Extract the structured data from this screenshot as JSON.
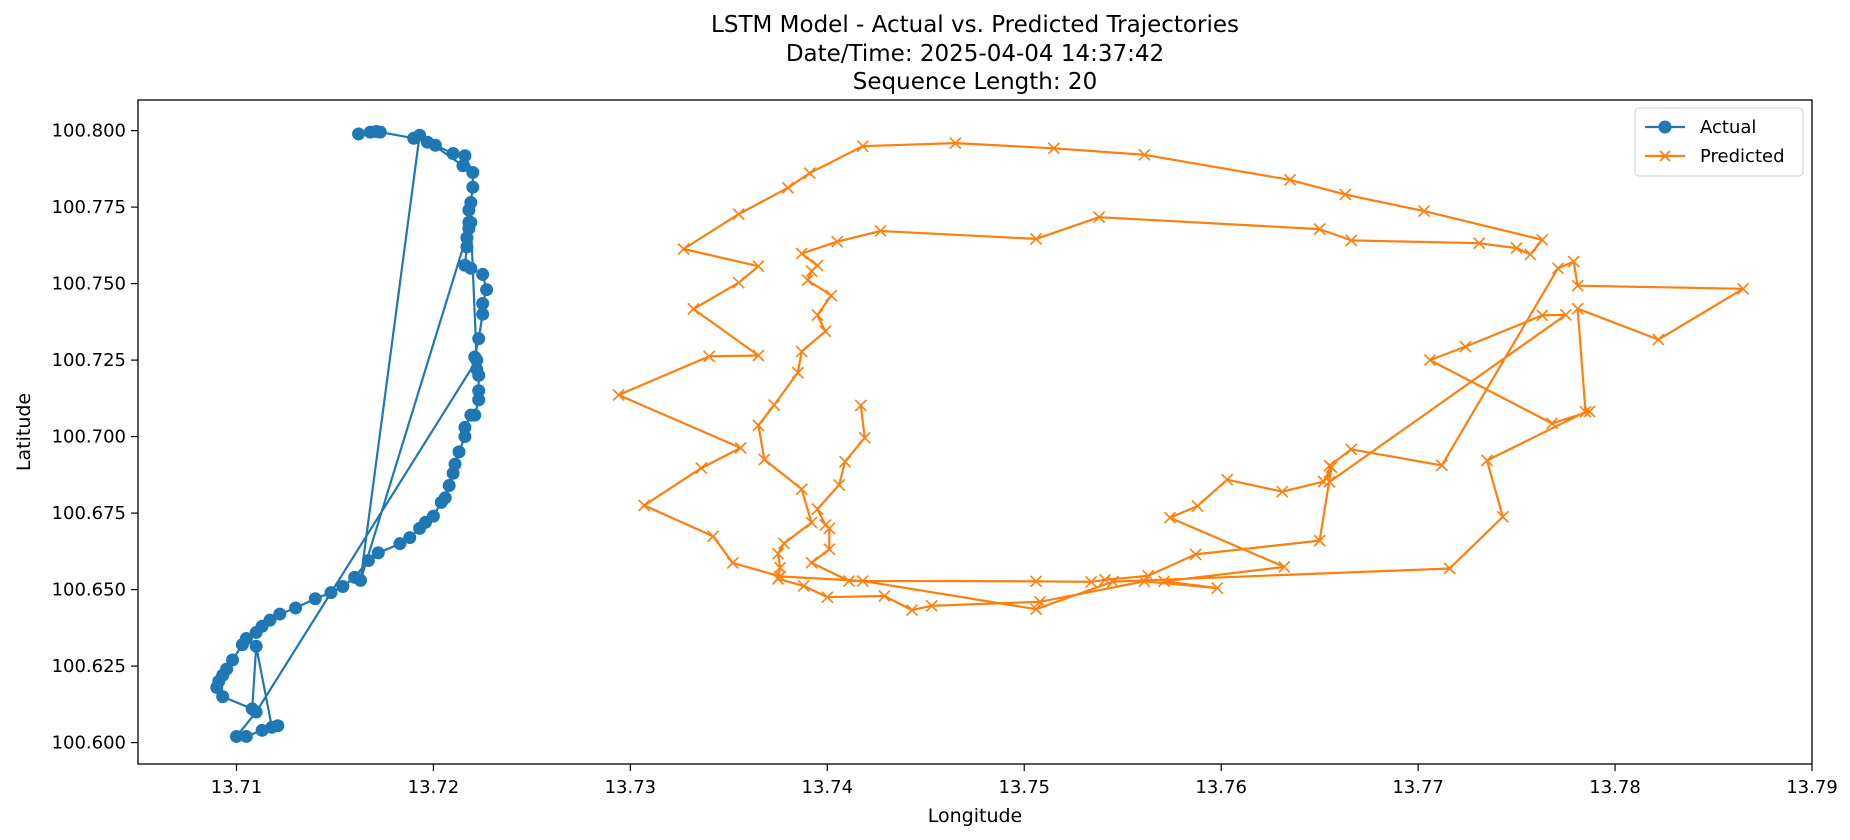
{
  "chart_data": {
    "type": "line",
    "title_lines": [
      "LSTM Model - Actual vs. Predicted Trajectories",
      "Date/Time: 2025-04-04 14:37:42",
      "Sequence Length: 20"
    ],
    "xlabel": "Longitude",
    "ylabel": "Latitude",
    "xlim": [
      13.705,
      13.79
    ],
    "ylim": [
      100.593,
      100.81
    ],
    "xticks": [
      13.71,
      13.72,
      13.73,
      13.74,
      13.75,
      13.76,
      13.77,
      13.78,
      13.79
    ],
    "xtick_labels": [
      "13.71",
      "13.72",
      "13.73",
      "13.74",
      "13.75",
      "13.76",
      "13.77",
      "13.78",
      "13.79"
    ],
    "yticks": [
      100.6,
      100.625,
      100.65,
      100.675,
      100.7,
      100.725,
      100.75,
      100.775,
      100.8
    ],
    "ytick_labels": [
      "100.600",
      "100.625",
      "100.650",
      "100.675",
      "100.700",
      "100.725",
      "100.750",
      "100.775",
      "100.800"
    ],
    "grid": false,
    "legend": "top-right",
    "series": [
      {
        "name": "Actual",
        "marker": "circle",
        "color": "#1f77b4",
        "points": [
          [
            13.7162,
            100.7989
          ],
          [
            13.7168,
            100.7995
          ],
          [
            13.7171,
            100.7997
          ],
          [
            13.7173,
            100.7995
          ],
          [
            13.719,
            100.7975
          ],
          [
            13.7197,
            100.7962
          ],
          [
            13.7201,
            100.7952
          ],
          [
            13.721,
            100.7925
          ],
          [
            13.7216,
            100.7918
          ],
          [
            13.722,
            100.7863
          ],
          [
            13.722,
            100.7815
          ],
          [
            13.7219,
            100.7765
          ],
          [
            13.7218,
            100.774
          ],
          [
            13.7218,
            100.77
          ],
          [
            13.7218,
            100.768
          ],
          [
            13.7217,
            100.765
          ],
          [
            13.7217,
            100.762
          ],
          [
            13.7216,
            100.756
          ],
          [
            13.7219,
            100.755
          ],
          [
            13.7225,
            100.753
          ],
          [
            13.7227,
            100.748
          ],
          [
            13.7225,
            100.7435
          ],
          [
            13.7225,
            100.74
          ],
          [
            13.7223,
            100.732
          ],
          [
            13.7221,
            100.726
          ],
          [
            13.7222,
            100.722
          ],
          [
            13.7223,
            100.72
          ],
          [
            13.7223,
            100.715
          ],
          [
            13.7223,
            100.712
          ],
          [
            13.7221,
            100.707
          ],
          [
            13.7219,
            100.707
          ],
          [
            13.7216,
            100.703
          ],
          [
            13.7216,
            100.7
          ],
          [
            13.7213,
            100.695
          ],
          [
            13.7211,
            100.691
          ],
          [
            13.721,
            100.688
          ],
          [
            13.7208,
            100.684
          ],
          [
            13.7206,
            100.68
          ],
          [
            13.7204,
            100.6785
          ],
          [
            13.72,
            100.674
          ],
          [
            13.7196,
            100.672
          ],
          [
            13.7193,
            100.67
          ],
          [
            13.7188,
            100.667
          ],
          [
            13.7183,
            100.665
          ],
          [
            13.7172,
            100.662
          ],
          [
            13.7167,
            100.6595
          ],
          [
            13.716,
            100.654
          ],
          [
            13.7154,
            100.651
          ],
          [
            13.7148,
            100.649
          ],
          [
            13.714,
            100.647
          ],
          [
            13.713,
            100.644
          ],
          [
            13.7122,
            100.642
          ],
          [
            13.7117,
            100.64
          ],
          [
            13.7113,
            100.638
          ],
          [
            13.711,
            100.636
          ],
          [
            13.7105,
            100.634
          ],
          [
            13.7103,
            100.632
          ],
          [
            13.7098,
            100.627
          ],
          [
            13.7095,
            100.624
          ],
          [
            13.7093,
            100.622
          ],
          [
            13.7091,
            100.62
          ],
          [
            13.709,
            100.618
          ],
          [
            13.7093,
            100.615
          ],
          [
            13.7108,
            100.611
          ],
          [
            13.711,
            100.6315
          ],
          [
            13.7118,
            100.605
          ],
          [
            13.7121,
            100.6055
          ],
          [
            13.7113,
            100.604
          ],
          [
            13.7105,
            100.602
          ],
          [
            13.71,
            100.602
          ],
          [
            13.711,
            100.61
          ],
          [
            13.7222,
            100.725
          ],
          [
            13.7219,
            100.77
          ],
          [
            13.7163,
            100.653
          ],
          [
            13.7193,
            100.7985
          ],
          [
            13.7215,
            100.7885
          ]
        ]
      },
      {
        "name": "Predicted",
        "marker": "x",
        "color": "#ff7f0e",
        "points": [
          [
            13.7417,
            100.7102
          ],
          [
            13.7419,
            100.6996
          ],
          [
            13.7409,
            100.6918
          ],
          [
            13.7406,
            100.6842
          ],
          [
            13.7395,
            100.6763
          ],
          [
            13.7399,
            100.6711
          ],
          [
            13.7401,
            100.67
          ],
          [
            13.7401,
            100.6632
          ],
          [
            13.7392,
            100.6588
          ],
          [
            13.7411,
            100.6528
          ],
          [
            13.7506,
            100.6527
          ],
          [
            13.7534,
            100.6525
          ],
          [
            13.7541,
            100.6532
          ],
          [
            13.7563,
            100.6545
          ],
          [
            13.7587,
            100.6615
          ],
          [
            13.765,
            100.666
          ],
          [
            13.7656,
            100.69
          ],
          [
            13.7652,
            100.6853
          ],
          [
            13.7631,
            100.682
          ],
          [
            13.7603,
            100.6859
          ],
          [
            13.7588,
            100.6773
          ],
          [
            13.7574,
            100.6735
          ],
          [
            13.7632,
            100.6574
          ],
          [
            13.7571,
            100.6527
          ],
          [
            13.7598,
            100.6505
          ],
          [
            13.7561,
            100.6527
          ],
          [
            13.7508,
            100.646
          ],
          [
            13.7453,
            100.6447
          ],
          [
            13.7443,
            100.6433
          ],
          [
            13.7429,
            100.6479
          ],
          [
            13.74,
            100.6475
          ],
          [
            13.7388,
            100.6512
          ],
          [
            13.7375,
            100.6535
          ],
          [
            13.7376,
            100.6571
          ],
          [
            13.7375,
            100.6617
          ],
          [
            13.7378,
            100.6651
          ],
          [
            13.7392,
            100.6719
          ],
          [
            13.7387,
            100.6828
          ],
          [
            13.7368,
            100.6925
          ],
          [
            13.7365,
            100.7037
          ],
          [
            13.7373,
            100.7103
          ],
          [
            13.7385,
            100.7209
          ],
          [
            13.7387,
            100.7278
          ],
          [
            13.7399,
            100.7344
          ],
          [
            13.7395,
            100.7397
          ],
          [
            13.7402,
            100.7461
          ],
          [
            13.739,
            100.7511
          ],
          [
            13.7392,
            100.7541
          ],
          [
            13.7395,
            100.7559
          ],
          [
            13.7387,
            100.7598
          ],
          [
            13.7405,
            100.7637
          ],
          [
            13.7427,
            100.7672
          ],
          [
            13.7506,
            100.7646
          ],
          [
            13.7538,
            100.7717
          ],
          [
            13.765,
            100.7678
          ],
          [
            13.7666,
            100.7641
          ],
          [
            13.7731,
            100.7632
          ],
          [
            13.775,
            100.7616
          ],
          [
            13.7757,
            100.7595
          ],
          [
            13.7763,
            100.7643
          ],
          [
            13.7703,
            100.7737
          ],
          [
            13.7663,
            100.7791
          ],
          [
            13.7635,
            100.7839
          ],
          [
            13.7561,
            100.7921
          ],
          [
            13.7515,
            100.7942
          ],
          [
            13.7465,
            100.7959
          ],
          [
            13.7418,
            100.7949
          ],
          [
            13.7391,
            100.7861
          ],
          [
            13.738,
            100.7813
          ],
          [
            13.7355,
            100.7727
          ],
          [
            13.7327,
            100.7613
          ],
          [
            13.7365,
            100.7557
          ],
          [
            13.7355,
            100.7503
          ],
          [
            13.7332,
            100.7417
          ],
          [
            13.7365,
            100.7265
          ],
          [
            13.734,
            100.7262
          ],
          [
            13.7294,
            100.7136
          ],
          [
            13.7356,
            100.6963
          ],
          [
            13.7336,
            100.6897
          ],
          [
            13.7307,
            100.6775
          ],
          [
            13.7342,
            100.6674
          ],
          [
            13.7352,
            100.6587
          ],
          [
            13.7376,
            100.6543
          ],
          [
            13.7418,
            100.6528
          ],
          [
            13.7506,
            100.6436
          ],
          [
            13.7545,
            100.6526
          ],
          [
            13.7716,
            100.6569
          ],
          [
            13.7743,
            100.6738
          ],
          [
            13.7735,
            100.6922
          ],
          [
            13.7785,
            100.7081
          ],
          [
            13.7781,
            100.7418
          ],
          [
            13.7822,
            100.7317
          ],
          [
            13.7865,
            100.7483
          ],
          [
            13.7781,
            100.7493
          ],
          [
            13.7779,
            100.7572
          ],
          [
            13.7771,
            100.755
          ],
          [
            13.7712,
            100.6906
          ],
          [
            13.7666,
            100.6958
          ],
          [
            13.7655,
            100.6905
          ],
          [
            13.7655,
            100.6852
          ],
          [
            13.7775,
            100.7398
          ],
          [
            13.7763,
            100.7396
          ],
          [
            13.7724,
            100.7294
          ],
          [
            13.7706,
            100.725
          ],
          [
            13.7768,
            100.7043
          ],
          [
            13.7787,
            100.7082
          ]
        ]
      }
    ]
  }
}
